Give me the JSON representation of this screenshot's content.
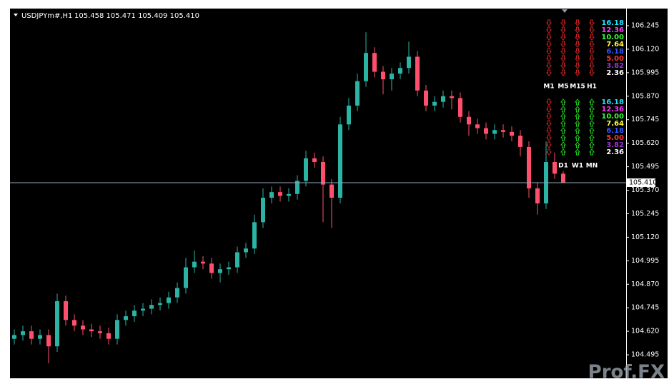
{
  "chart_data": {
    "type": "candlestick",
    "title": "USDJPYm#,H1",
    "ohlc_text": "105.458 105.471 105.409 105.410",
    "up_color": "#2bb3a3",
    "down_color": "#ff4f6d",
    "open": [
      104.58,
      104.6,
      104.62,
      104.58,
      104.6,
      104.54,
      104.78,
      104.68,
      104.65,
      104.63,
      104.62,
      104.61,
      104.58,
      104.68,
      104.7,
      104.73,
      104.74,
      104.76,
      104.77,
      104.8,
      104.85,
      104.96,
      104.99,
      104.98,
      104.93,
      104.95,
      104.96,
      105.04,
      105.06,
      105.2,
      105.33,
      105.36,
      105.34,
      105.35,
      105.42,
      105.54,
      105.52,
      105.4,
      105.33,
      105.72,
      105.82,
      105.95,
      106.1,
      106.0,
      105.96,
      105.99,
      106.02,
      106.08,
      105.9,
      105.82,
      105.84,
      105.87,
      105.86,
      105.76,
      105.72,
      105.7,
      105.67,
      105.69,
      105.68,
      105.66,
      105.6,
      105.38,
      105.3,
      105.52,
      105.458
    ],
    "high": [
      104.63,
      104.65,
      104.65,
      104.63,
      104.63,
      104.82,
      104.81,
      104.71,
      104.68,
      104.66,
      104.65,
      104.64,
      104.71,
      104.73,
      104.76,
      104.77,
      104.79,
      104.8,
      104.83,
      104.88,
      105.01,
      105.05,
      105.02,
      105.01,
      104.98,
      104.99,
      105.07,
      105.09,
      105.24,
      105.38,
      105.39,
      105.39,
      105.38,
      105.45,
      105.58,
      105.57,
      105.55,
      105.43,
      105.76,
      105.86,
      105.99,
      106.21,
      106.13,
      106.03,
      106.02,
      106.05,
      106.16,
      106.11,
      105.93,
      105.87,
      105.9,
      105.9,
      105.89,
      105.79,
      105.75,
      105.73,
      105.72,
      105.72,
      105.71,
      105.69,
      105.63,
      105.41,
      105.63,
      105.57,
      105.471
    ],
    "low": [
      104.55,
      104.57,
      104.55,
      104.55,
      104.45,
      104.51,
      104.65,
      104.62,
      104.6,
      104.59,
      104.58,
      104.55,
      104.55,
      104.65,
      104.67,
      104.7,
      104.71,
      104.73,
      104.74,
      104.77,
      104.82,
      104.93,
      104.95,
      104.9,
      104.88,
      104.92,
      104.93,
      105.01,
      105.03,
      105.17,
      105.3,
      105.31,
      105.31,
      105.32,
      105.39,
      105.49,
      105.2,
      105.17,
      105.3,
      105.69,
      105.79,
      105.92,
      105.97,
      105.88,
      105.9,
      105.96,
      105.99,
      105.87,
      105.79,
      105.79,
      105.81,
      105.8,
      105.73,
      105.66,
      105.67,
      105.64,
      105.64,
      105.65,
      105.63,
      105.55,
      105.33,
      105.24,
      105.27,
      105.43,
      105.409
    ],
    "close": [
      104.6,
      104.62,
      104.58,
      104.6,
      104.54,
      104.78,
      104.68,
      104.65,
      104.63,
      104.62,
      104.61,
      104.58,
      104.68,
      104.7,
      104.73,
      104.74,
      104.76,
      104.77,
      104.8,
      104.85,
      104.96,
      104.99,
      104.98,
      104.93,
      104.95,
      104.96,
      105.04,
      105.06,
      105.2,
      105.33,
      105.36,
      105.34,
      105.35,
      105.42,
      105.54,
      105.52,
      105.4,
      105.33,
      105.72,
      105.82,
      105.95,
      106.1,
      106.0,
      105.96,
      105.99,
      106.02,
      106.08,
      105.9,
      105.82,
      105.84,
      105.87,
      105.86,
      105.76,
      105.72,
      105.7,
      105.67,
      105.69,
      105.68,
      105.66,
      105.6,
      105.38,
      105.3,
      105.52,
      105.458,
      105.41
    ],
    "ylim": [
      104.37,
      106.336
    ],
    "yticks": [
      104.495,
      {
        "value": 104.62,
        "label": "104.620"
      },
      104.745,
      {
        "value": 104.87,
        "label": "104.870"
      },
      104.995,
      {
        "value": 105.12,
        "label": "105.120"
      },
      105.245,
      {
        "value": 105.37,
        "label": "105.370"
      },
      105.495,
      {
        "value": 105.62,
        "label": "105.620"
      },
      105.745,
      {
        "value": 105.87,
        "label": "105.870"
      },
      105.995,
      {
        "value": 106.12,
        "label": "106.120"
      },
      106.245
    ],
    "last_price": {
      "value": 105.41,
      "label": "105.410"
    },
    "grid": false
  },
  "panel": {
    "levels": [
      {
        "text": "16.18",
        "color": "#22e0ff"
      },
      {
        "text": "12.36",
        "color": "#ff33ff"
      },
      {
        "text": "10.00",
        "color": "#33ff33"
      },
      {
        "text": "7.64",
        "color": "#ffff33"
      },
      {
        "text": "6.18",
        "color": "#3355ff"
      },
      {
        "text": "5.00",
        "color": "#ff3333"
      },
      {
        "text": "3.82",
        "color": "#9933cc"
      },
      {
        "text": "2.36",
        "color": "#ffffff"
      }
    ],
    "blocks": [
      {
        "columns": [
          {
            "label": "M1",
            "direction": "down"
          },
          {
            "label": "M5",
            "direction": "down"
          },
          {
            "label": "M15",
            "direction": "down"
          },
          {
            "label": "H1",
            "direction": "down"
          }
        ]
      },
      {
        "columns": [
          {
            "direction": "down"
          },
          {
            "label": "D1",
            "direction": "up"
          },
          {
            "label": "W1",
            "direction": "up"
          },
          {
            "label": "MN",
            "direction": "up"
          }
        ]
      }
    ]
  },
  "watermark": "Prof.FX"
}
